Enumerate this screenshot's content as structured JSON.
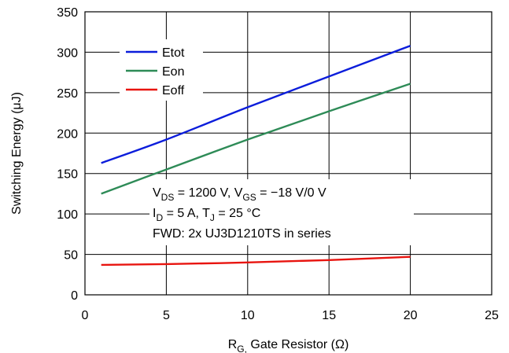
{
  "chart_data": {
    "type": "line",
    "title": "",
    "xlabel": {
      "main": "R",
      "sub": "G,",
      "rest": " Gate Resistor (Ω)"
    },
    "ylabel": "Switching Energy (μJ)",
    "xlim": [
      0,
      25
    ],
    "ylim": [
      0,
      350
    ],
    "xticks": [
      "0",
      "5",
      "10",
      "15",
      "20",
      "25"
    ],
    "yticks": [
      "0",
      "50",
      "100",
      "150",
      "200",
      "250",
      "300",
      "350"
    ],
    "grid": true,
    "legend_position": "top-left",
    "series": [
      {
        "name": "Etot",
        "color": "#0b1ddb",
        "x": [
          1,
          5,
          10,
          15,
          20
        ],
        "y": [
          163,
          192,
          232,
          270,
          308
        ]
      },
      {
        "name": "Eon",
        "color": "#2e8b57",
        "x": [
          1,
          5,
          10,
          15,
          20
        ],
        "y": [
          125,
          155,
          192,
          227,
          261
        ]
      },
      {
        "name": "Eoff",
        "color": "#e8140f",
        "x": [
          1,
          5,
          10,
          15,
          20
        ],
        "y": [
          37,
          38,
          40,
          43,
          47
        ]
      }
    ],
    "annotations": [
      {
        "segments": [
          {
            "t": "V"
          },
          {
            "t": "DS",
            "sub": true
          },
          {
            "t": " = 1200 V, V"
          },
          {
            "t": "GS",
            "sub": true
          },
          {
            "t": " = −18 V/0 V"
          }
        ]
      },
      {
        "segments": [
          {
            "t": "I"
          },
          {
            "t": "D",
            "sub": true
          },
          {
            "t": " = 5 A, T"
          },
          {
            "t": "J",
            "sub": true
          },
          {
            "t": " = 25 °C"
          }
        ]
      },
      {
        "segments": [
          {
            "t": "FWD: 2x UJ3D1210TS in series"
          }
        ]
      }
    ]
  }
}
